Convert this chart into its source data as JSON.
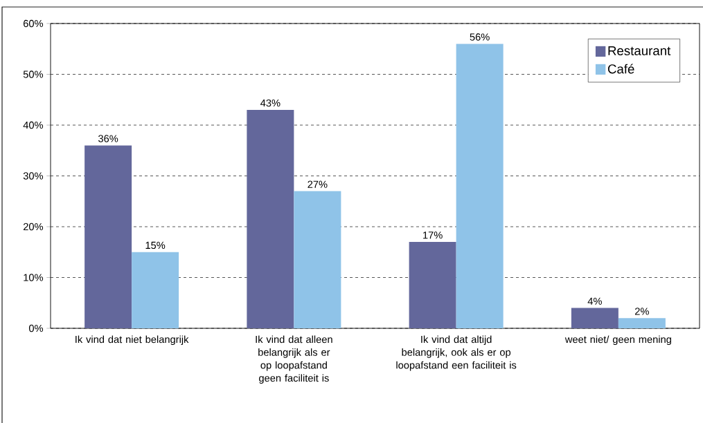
{
  "chart_data": {
    "type": "bar",
    "categories": [
      "Ik vind dat niet belangrijk",
      "Ik vind dat alleen belangrijk als er op loopafstand geen faciliteit is",
      "Ik vind dat altijd belangrijk, ook als er op loopafstand een faciliteit is",
      "weet niet/ geen mening"
    ],
    "series": [
      {
        "name": "Restaurant",
        "color": "#63679b",
        "values": [
          36,
          43,
          17,
          4
        ],
        "value_labels": [
          "36%",
          "43%",
          "17%",
          "4%"
        ]
      },
      {
        "name": "Café",
        "color": "#8fc3e8",
        "values": [
          15,
          27,
          56,
          2
        ],
        "value_labels": [
          "15%",
          "27%",
          "56%",
          "2%"
        ]
      }
    ],
    "ylim": [
      0,
      60
    ],
    "yticks": [
      {
        "value": 0,
        "label": "0%"
      },
      {
        "value": 10,
        "label": "10%"
      },
      {
        "value": 20,
        "label": "20%"
      },
      {
        "value": 30,
        "label": "30%"
      },
      {
        "value": 40,
        "label": "40%"
      },
      {
        "value": 50,
        "label": "50%"
      },
      {
        "value": 60,
        "label": "60%"
      }
    ],
    "grid": "y",
    "legend": "top right"
  }
}
